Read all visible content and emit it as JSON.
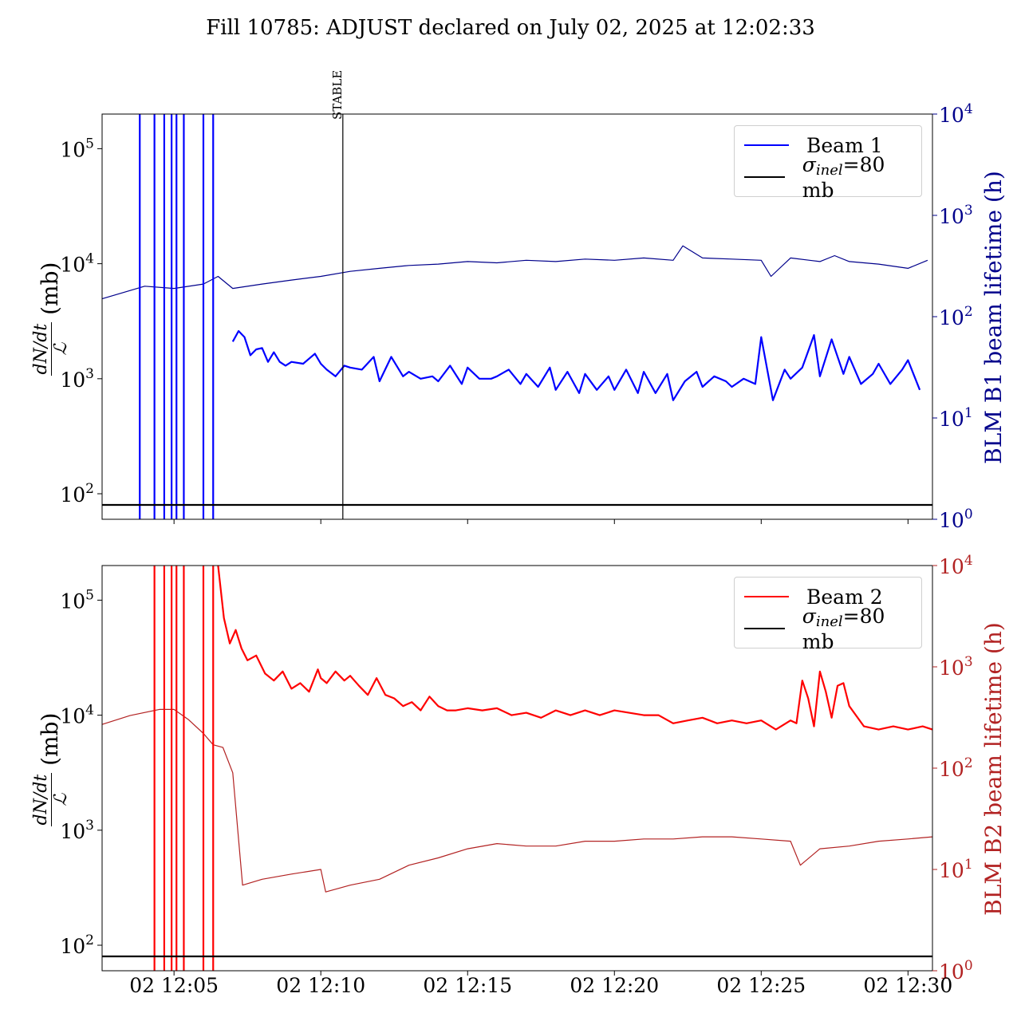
{
  "title": "Fill 10785: ADJUST declared on July 02, 2025 at 12:02:33",
  "chart_data": [
    {
      "type": "line",
      "panel": "top",
      "yscale_left": "log",
      "yscale_right": "log",
      "ylim_left": [
        60,
        200000
      ],
      "ylim_right": [
        1,
        10000
      ],
      "ylabel_left_frac_num": "dN/dt",
      "ylabel_left_frac_den": "ℒ",
      "ylabel_left_unit": "(mb)",
      "ylabel_right": "BLM B1 beam lifetime (h)",
      "left_ticks": [
        "10^2",
        "10^3",
        "10^4",
        "10^5"
      ],
      "right_ticks": [
        "10^0",
        "10^1",
        "10^2",
        "10^3",
        "10^4"
      ],
      "marker": {
        "label": "STABLE",
        "x": "12:10:45"
      },
      "legend_position": "top-right",
      "series": [
        {
          "name": "Beam 1",
          "color": "#0000ff",
          "axis": "left",
          "x": [
            "12:07:00",
            "12:07:12",
            "12:07:24",
            "12:07:36",
            "12:07:48",
            "12:08:00",
            "12:08:12",
            "12:08:24",
            "12:08:36",
            "12:08:48",
            "12:09:00",
            "12:09:24",
            "12:09:48",
            "12:10:00",
            "12:10:12",
            "12:10:30",
            "12:10:48",
            "12:11:00",
            "12:11:24",
            "12:11:48",
            "12:12:00",
            "12:12:24",
            "12:12:48",
            "12:13:00",
            "12:13:24",
            "12:13:48",
            "12:14:00",
            "12:14:24",
            "12:14:48",
            "12:15:00",
            "12:15:24",
            "12:15:48",
            "12:16:00",
            "12:16:24",
            "12:16:48",
            "12:17:00",
            "12:17:24",
            "12:17:48",
            "12:18:00",
            "12:18:24",
            "12:18:48",
            "12:19:00",
            "12:19:24",
            "12:19:48",
            "12:20:00",
            "12:20:24",
            "12:20:48",
            "12:21:00",
            "12:21:24",
            "12:21:48",
            "12:22:00",
            "12:22:24",
            "12:22:48",
            "12:23:00",
            "12:23:24",
            "12:23:48",
            "12:24:00",
            "12:24:24",
            "12:24:48",
            "12:25:00",
            "12:25:24",
            "12:25:48",
            "12:26:00",
            "12:26:24",
            "12:26:48",
            "12:27:00",
            "12:27:24",
            "12:27:48",
            "12:28:00",
            "12:28:24",
            "12:28:48",
            "12:29:00",
            "12:29:24",
            "12:29:48",
            "12:30:00",
            "12:30:24"
          ],
          "y": [
            2100,
            2600,
            2300,
            1600,
            1800,
            1850,
            1400,
            1700,
            1400,
            1300,
            1400,
            1350,
            1650,
            1350,
            1200,
            1050,
            1300,
            1250,
            1200,
            1550,
            950,
            1550,
            1050,
            1150,
            1000,
            1050,
            950,
            1300,
            900,
            1250,
            1000,
            1000,
            1050,
            1200,
            900,
            1100,
            850,
            1250,
            800,
            1150,
            750,
            1100,
            800,
            1050,
            800,
            1200,
            750,
            1150,
            750,
            1100,
            650,
            950,
            1150,
            850,
            1050,
            950,
            850,
            1000,
            900,
            2300,
            650,
            1200,
            1000,
            1250,
            2400,
            1050,
            2200,
            1100,
            1550,
            900,
            1100,
            1350,
            900,
            1200,
            1450,
            800
          ]
        },
        {
          "name": "BLM B1 lifetime",
          "color": "#00008b",
          "axis": "right",
          "x": [
            "12:02:33",
            "12:04:00",
            "12:05:00",
            "12:06:00",
            "12:06:30",
            "12:07:00",
            "12:08:00",
            "12:09:00",
            "12:10:00",
            "12:11:00",
            "12:12:00",
            "12:13:00",
            "12:14:00",
            "12:15:00",
            "12:16:00",
            "12:17:00",
            "12:18:00",
            "12:19:00",
            "12:20:00",
            "12:21:00",
            "12:22:00",
            "12:22:20",
            "12:23:00",
            "12:24:00",
            "12:25:00",
            "12:25:20",
            "12:26:00",
            "12:27:00",
            "12:27:30",
            "12:28:00",
            "12:29:00",
            "12:30:00",
            "12:30:40"
          ],
          "y": [
            150,
            200,
            190,
            210,
            250,
            190,
            210,
            230,
            250,
            280,
            300,
            320,
            330,
            350,
            340,
            360,
            350,
            370,
            360,
            380,
            360,
            500,
            380,
            370,
            360,
            250,
            380,
            350,
            400,
            350,
            330,
            300,
            360
          ]
        }
      ],
      "reference_line": {
        "name": "σinel=80 mb",
        "y": 80,
        "color": "#000000"
      },
      "spikes": [
        "12:03:50",
        "12:04:20",
        "12:04:40",
        "12:04:55",
        "12:05:05",
        "12:05:20",
        "12:06:00",
        "12:06:20"
      ]
    },
    {
      "type": "line",
      "panel": "bottom",
      "yscale_left": "log",
      "yscale_right": "log",
      "ylim_left": [
        60,
        200000
      ],
      "ylim_right": [
        1,
        10000
      ],
      "ylabel_left_frac_num": "dN/dt",
      "ylabel_left_frac_den": "ℒ",
      "ylabel_left_unit": "(mb)",
      "ylabel_right": "BLM B2 beam lifetime (h)",
      "left_ticks": [
        "10^2",
        "10^3",
        "10^4",
        "10^5"
      ],
      "right_ticks": [
        "10^0",
        "10^1",
        "10^2",
        "10^3",
        "10^4"
      ],
      "legend_position": "top-right",
      "xlim": [
        "12:02:33",
        "12:30:50"
      ],
      "xticks": [
        "02 12:05",
        "02 12:10",
        "02 12:15",
        "02 12:20",
        "02 12:25",
        "02 12:30"
      ],
      "series": [
        {
          "name": "Beam 2",
          "color": "#ff0000",
          "axis": "left",
          "x": [
            "12:06:30",
            "12:06:42",
            "12:06:54",
            "12:07:06",
            "12:07:18",
            "12:07:30",
            "12:07:48",
            "12:08:06",
            "12:08:24",
            "12:08:42",
            "12:09:00",
            "12:09:18",
            "12:09:36",
            "12:09:54",
            "12:10:00",
            "12:10:12",
            "12:10:30",
            "12:10:48",
            "12:11:00",
            "12:11:18",
            "12:11:36",
            "12:11:54",
            "12:12:12",
            "12:12:30",
            "12:12:48",
            "12:13:06",
            "12:13:24",
            "12:13:42",
            "12:14:00",
            "12:14:18",
            "12:14:36",
            "12:15:00",
            "12:15:30",
            "12:16:00",
            "12:16:30",
            "12:17:00",
            "12:17:30",
            "12:18:00",
            "12:18:30",
            "12:19:00",
            "12:19:30",
            "12:20:00",
            "12:20:30",
            "12:21:00",
            "12:21:30",
            "12:22:00",
            "12:22:30",
            "12:23:00",
            "12:23:30",
            "12:24:00",
            "12:24:30",
            "12:25:00",
            "12:25:30",
            "12:26:00",
            "12:26:12",
            "12:26:24",
            "12:26:36",
            "12:26:48",
            "12:27:00",
            "12:27:12",
            "12:27:24",
            "12:27:36",
            "12:27:48",
            "12:28:00",
            "12:28:30",
            "12:29:00",
            "12:29:30",
            "12:30:00",
            "12:30:30",
            "12:30:50"
          ],
          "y": [
            200000,
            70000,
            42000,
            55000,
            38000,
            30000,
            33000,
            23000,
            20000,
            24000,
            17000,
            19000,
            16000,
            25000,
            21000,
            19000,
            24000,
            20000,
            22000,
            18000,
            15000,
            21000,
            15000,
            14000,
            12000,
            13000,
            11000,
            14500,
            12000,
            11000,
            11000,
            11500,
            11000,
            11500,
            10000,
            10500,
            9500,
            11000,
            10000,
            11000,
            10000,
            11000,
            10500,
            10000,
            10000,
            8500,
            9000,
            9500,
            8500,
            9000,
            8500,
            9000,
            7500,
            9000,
            8500,
            20000,
            14000,
            8000,
            24000,
            16000,
            9500,
            18000,
            19000,
            12000,
            8000,
            7500,
            8000,
            7500,
            8000,
            7500
          ]
        },
        {
          "name": "BLM B2 lifetime",
          "color": "#b22222",
          "axis": "right",
          "x": [
            "12:02:33",
            "12:03:30",
            "12:04:30",
            "12:05:00",
            "12:05:30",
            "12:06:00",
            "12:06:20",
            "12:06:40",
            "12:07:00",
            "12:07:20",
            "12:08:00",
            "12:09:00",
            "12:10:00",
            "12:10:10",
            "12:11:00",
            "12:12:00",
            "12:13:00",
            "12:14:00",
            "12:15:00",
            "12:16:00",
            "12:17:00",
            "12:18:00",
            "12:19:00",
            "12:20:00",
            "12:21:00",
            "12:22:00",
            "12:23:00",
            "12:24:00",
            "12:25:00",
            "12:26:00",
            "12:26:20",
            "12:27:00",
            "12:28:00",
            "12:29:00",
            "12:30:00",
            "12:30:50"
          ],
          "y": [
            270,
            330,
            380,
            380,
            300,
            220,
            170,
            160,
            90,
            7,
            8,
            9,
            10,
            6,
            7,
            8,
            11,
            13,
            16,
            18,
            17,
            17,
            19,
            19,
            20,
            20,
            21,
            21,
            20,
            19,
            11,
            16,
            17,
            19,
            20,
            21
          ]
        }
      ],
      "reference_line": {
        "name": "σinel=80 mb",
        "y": 80,
        "color": "#000000"
      },
      "spikes": [
        "12:04:20",
        "12:04:40",
        "12:04:55",
        "12:05:05",
        "12:05:20",
        "12:06:00",
        "12:06:20"
      ]
    }
  ]
}
